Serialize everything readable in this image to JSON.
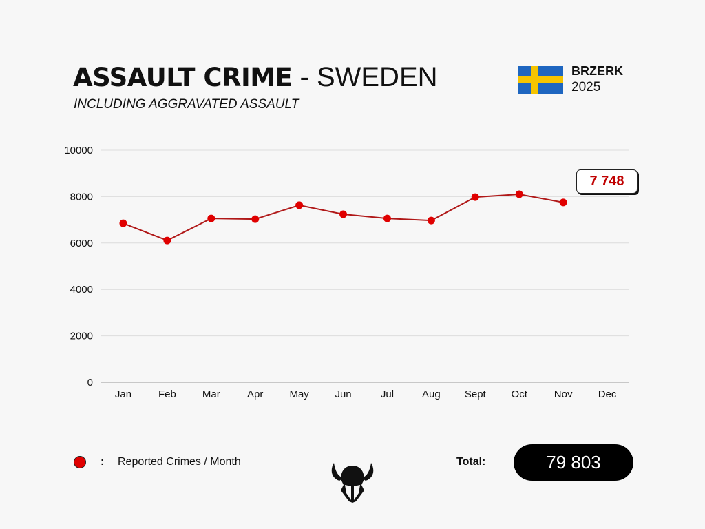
{
  "header": {
    "title_bold": "ASSAULT CRIME",
    "title_rest": " - SWEDEN",
    "subtitle": "INCLUDING AGGRAVATED ASSAULT",
    "brand": "BRZERK",
    "year": "2025",
    "flag": "sweden-flag"
  },
  "chart_data": {
    "type": "line",
    "categories": [
      "Jan",
      "Feb",
      "Mar",
      "Apr",
      "May",
      "Jun",
      "Jul",
      "Aug",
      "Sept",
      "Oct",
      "Nov",
      "Dec"
    ],
    "series": [
      {
        "name": "Reported Crimes / Month",
        "values": [
          6850,
          6110,
          7060,
          7030,
          7630,
          7240,
          7060,
          6970,
          7980,
          8100,
          7748,
          null
        ],
        "color": "#e00000"
      }
    ],
    "yticks": [
      0,
      2000,
      4000,
      6000,
      8000,
      10000
    ],
    "ylim": [
      0,
      10000
    ],
    "grid": true,
    "callout": "7 748"
  },
  "legend": {
    "colon": ":",
    "label": "Reported Crimes / Month"
  },
  "total": {
    "label": "Total:",
    "value": "79 803"
  }
}
